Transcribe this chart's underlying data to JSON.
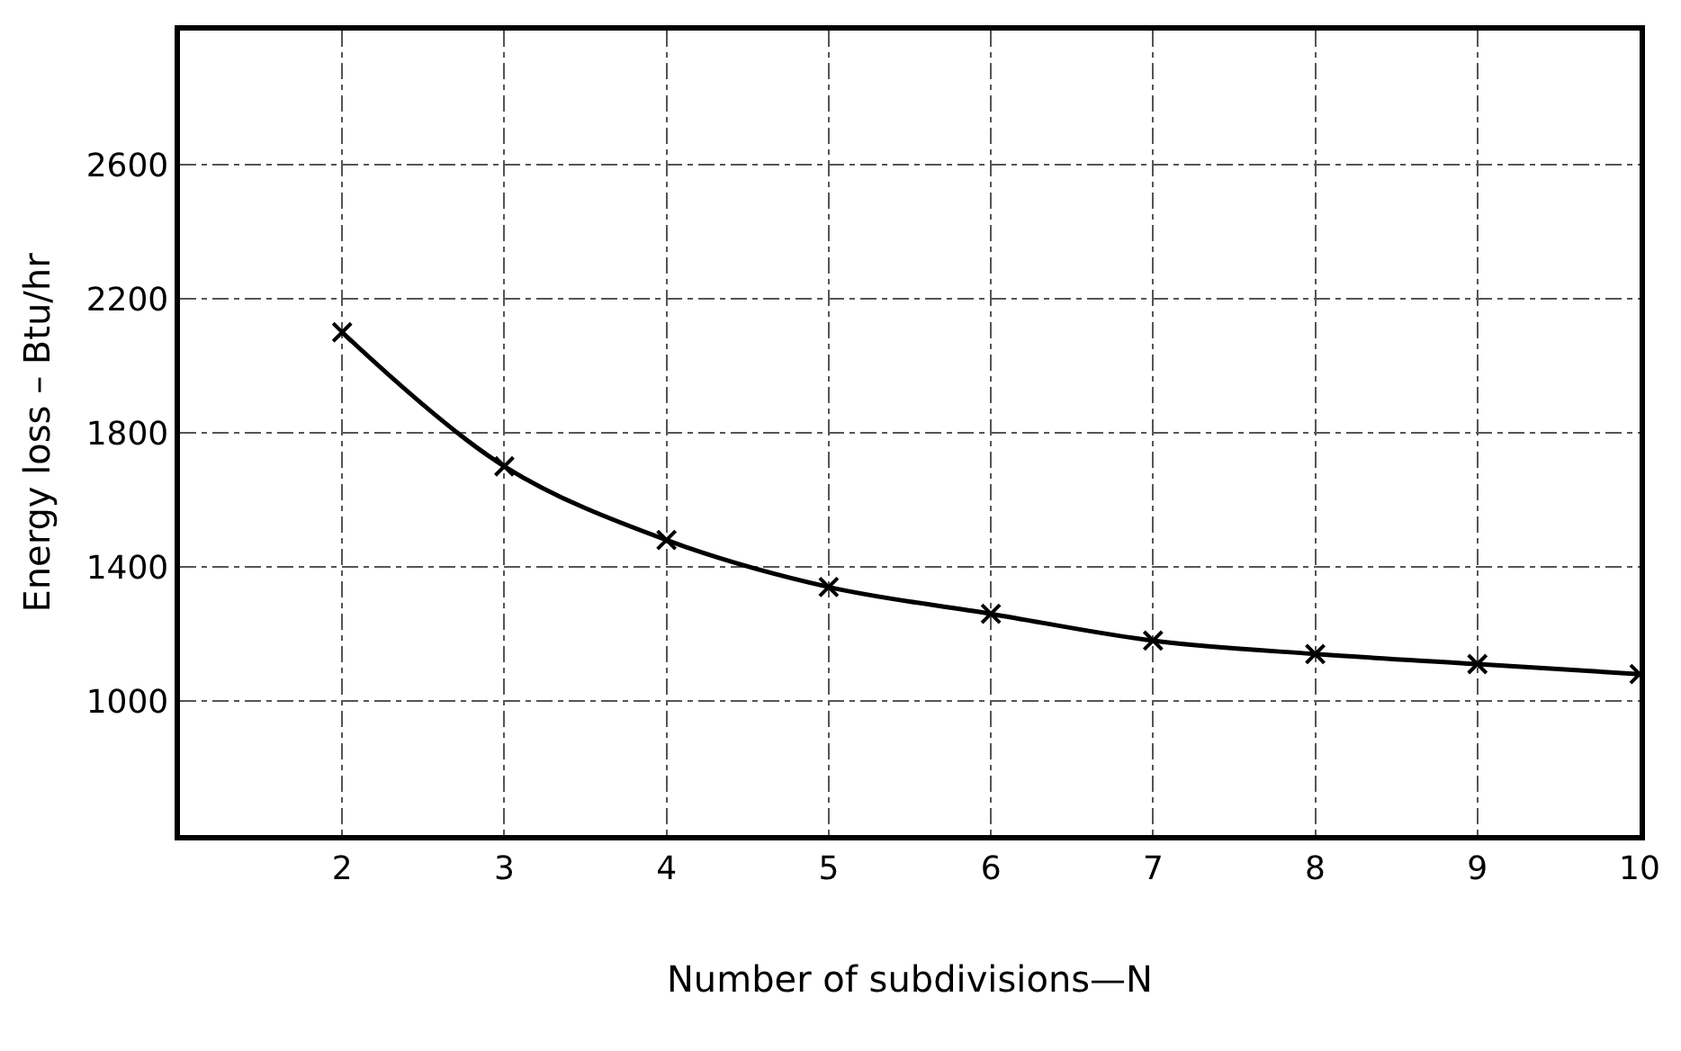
{
  "chart_data": {
    "type": "line",
    "xlabel": "Number of subdivisions—N",
    "ylabel": "Energy loss – Btu/hr",
    "x": [
      2,
      3,
      4,
      5,
      6,
      7,
      8,
      9,
      10
    ],
    "series": [
      {
        "color": "#000000",
        "values": [
          2100,
          1700,
          1480,
          1340,
          1260,
          1180,
          1140,
          1110,
          1080
        ]
      }
    ],
    "xlim": [
      1,
      10
    ],
    "xticks": [
      2,
      3,
      4,
      5,
      6,
      7,
      8,
      9,
      10
    ],
    "ylim": [
      600,
      3000
    ],
    "yticks": [
      1000,
      1400,
      1800,
      2200,
      2600
    ],
    "grid": true,
    "marker": "cross",
    "line_style": "solid"
  }
}
